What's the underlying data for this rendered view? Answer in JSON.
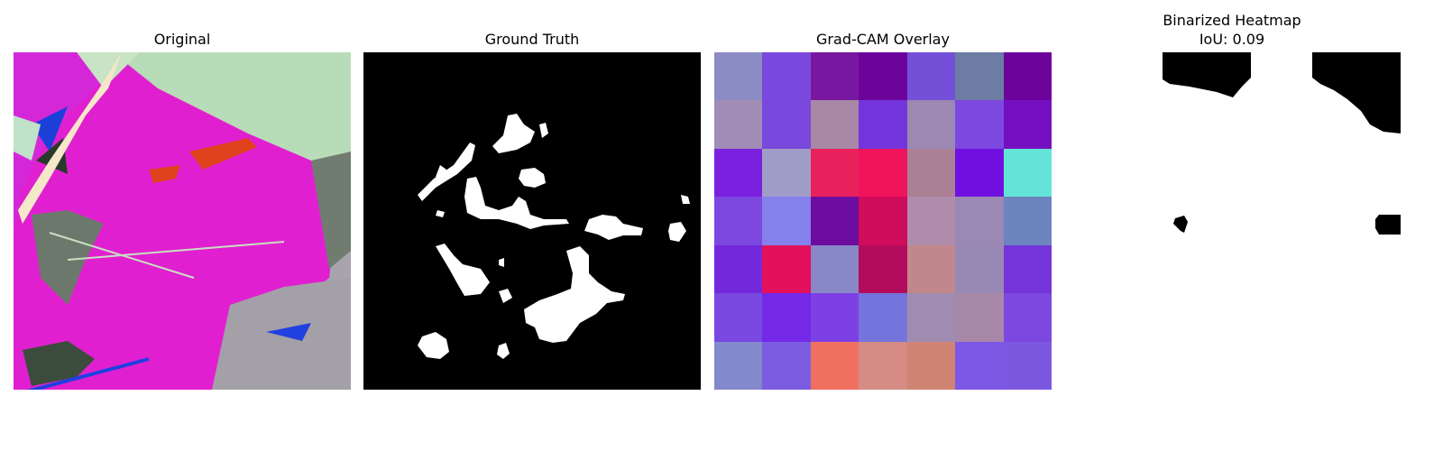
{
  "panels": {
    "original": {
      "title": "Original"
    },
    "ground_truth": {
      "title": "Ground Truth"
    },
    "gradcam": {
      "title": "Grad-CAM Overlay",
      "grid": [
        [
          "#8c8cc4",
          "#7a48dc",
          "#7818a0",
          "#6c049c",
          "#7450d8",
          "#6c7ca4",
          "#6c049c"
        ],
        [
          "#a08cb4",
          "#7a48dc",
          "#a888a4",
          "#7434dc",
          "#9c88b0",
          "#7c48e0",
          "#7410c0"
        ],
        [
          "#7c20e0",
          "#a09cc8",
          "#e8205c",
          "#f0145c",
          "#ac8094",
          "#7010e0",
          "#64e4d8"
        ],
        [
          "#7c48e0",
          "#8480ec",
          "#6c0ca0",
          "#d00c5c",
          "#b08cac",
          "#9c88b4",
          "#6c84c0"
        ],
        [
          "#7428dc",
          "#e4105c",
          "#8888c8",
          "#b40c5c",
          "#c0888c",
          "#9888b4",
          "#7434d8"
        ],
        [
          "#7848e0",
          "#7428e8",
          "#7c40e4",
          "#7474dc",
          "#a08cb0",
          "#a888a8",
          "#7c48e0"
        ],
        [
          "#8488cc",
          "#7c5ce0",
          "#f07060",
          "#d48c84",
          "#d08474",
          "#7c58e4",
          "#7c58e0"
        ]
      ]
    },
    "binarized": {
      "title": "Binarized Heatmap",
      "iou_label": "IoU: 0.09"
    }
  }
}
